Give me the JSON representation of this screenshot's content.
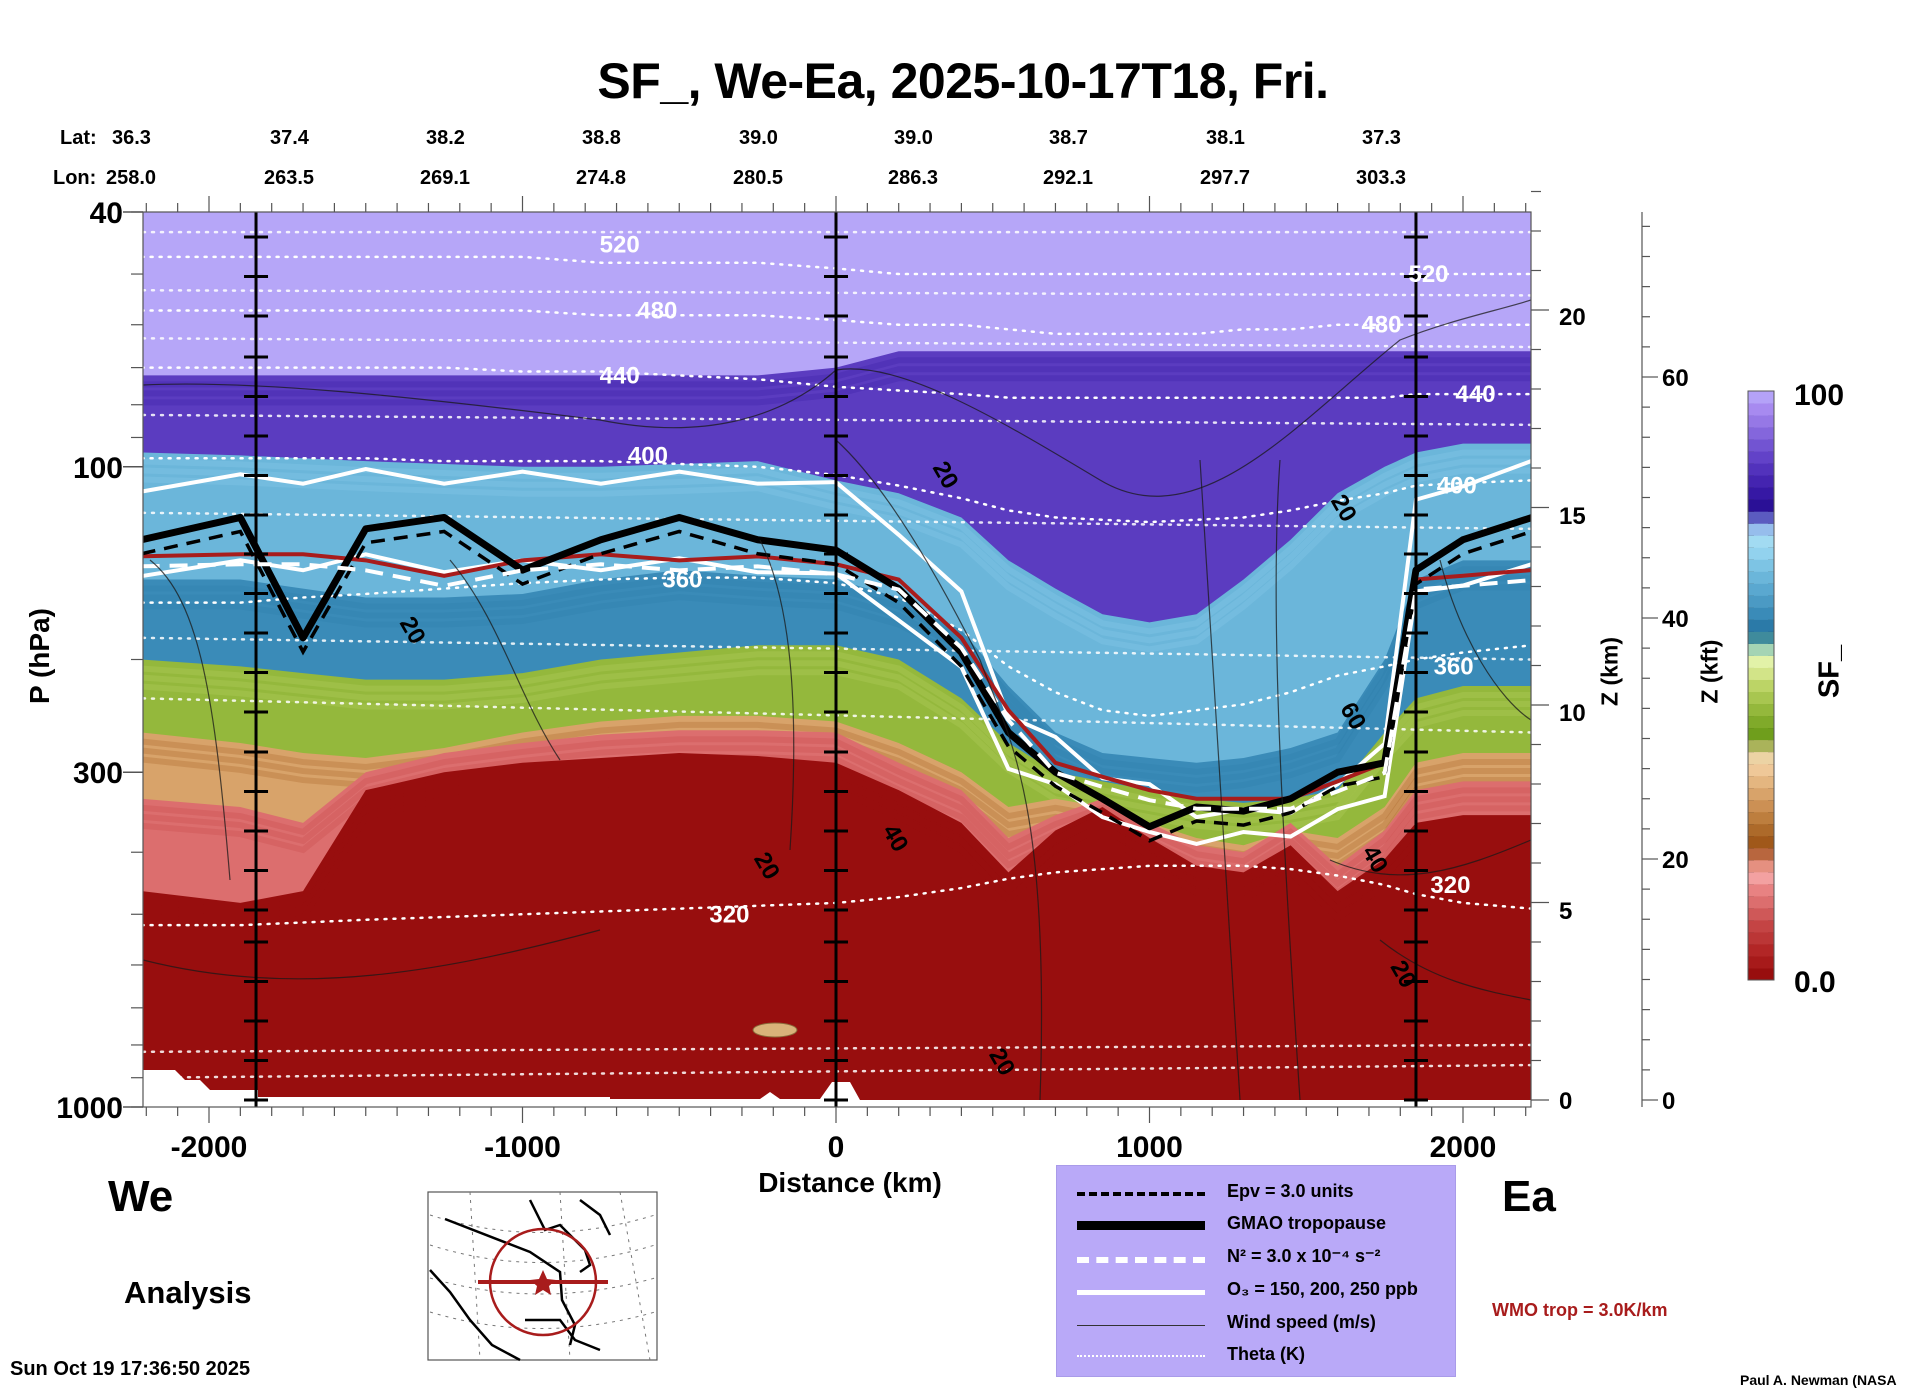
{
  "title": "SF_, We-Ea, 2025-10-17T18, Fri.",
  "header": {
    "lat_label": "Lat:",
    "lon_label": "Lon:",
    "lat": [
      "36.3",
      "37.4",
      "38.2",
      "38.8",
      "39.0",
      "39.0",
      "38.7",
      "38.1",
      "37.3"
    ],
    "lon": [
      "258.0",
      "263.5",
      "269.1",
      "274.8",
      "280.5",
      "286.3",
      "292.1",
      "297.7",
      "303.3"
    ]
  },
  "labels": {
    "west": "We",
    "east": "Ea",
    "analysis": "Analysis",
    "timestamp": "Sun Oct 19 17:36:50 2025",
    "credit": "Paul A. Newman (NASA",
    "wmo": "WMO trop = 3.0K/km"
  },
  "colors": {
    "wmo": "#a81c1c",
    "legend_bg": "#b9a9f8",
    "ground": "#980e0e"
  },
  "legend": [
    {
      "style": "black-dashed",
      "label": "Epv = 3.0 units"
    },
    {
      "style": "black-thick",
      "label": "GMAO tropopause"
    },
    {
      "style": "white-dashed",
      "label": "N² = 3.0 x 10⁻⁴ s⁻²"
    },
    {
      "style": "white-solid",
      "label": "O₃ = 150, 200, 250 ppb"
    },
    {
      "style": "thin-black",
      "label": "Wind speed (m/s)"
    },
    {
      "style": "white-dotted",
      "label": "Theta (K)"
    }
  ],
  "chart_data": {
    "type": "heatmap",
    "title": "SF_, We-Ea, 2025-10-17T18, Fri.",
    "xlabel": "Distance (km)",
    "ylabel": "P (hPa)",
    "y2label": "Z (km)",
    "y3label": "Z (kft)",
    "colorbar_label": "SF_",
    "xlim": [
      -2215,
      2220
    ],
    "ylim": [
      1000,
      40
    ],
    "yscale": "log",
    "xticks": [
      -2000,
      -1000,
      0,
      1000,
      2000
    ],
    "xticklabels": [
      "-2000",
      "-1000",
      "0",
      "1000",
      "2000"
    ],
    "yticks": [
      40,
      100,
      300,
      1000
    ],
    "yticklabels": [
      "40",
      "100",
      "300",
      "1000"
    ],
    "z_km_ticks": [
      0,
      5,
      10,
      15,
      20
    ],
    "z_kft_ticks": [
      0,
      20,
      40,
      60
    ],
    "vertical_markers_km": [
      -1850,
      0,
      1850
    ],
    "colorbar": {
      "min": 0.0,
      "max": 100,
      "min_label": "0.0",
      "max_label": "100",
      "colors": [
        "#980e0e",
        "#a71a1a",
        "#b22626",
        "#bb3636",
        "#c44444",
        "#cf5858",
        "#dc6e6e",
        "#e88282",
        "#f3a1a1",
        "#e59080",
        "#b8663e",
        "#a0581a",
        "#ad6a2a",
        "#bd7e3e",
        "#cc9054",
        "#d8a36a",
        "#e4b680",
        "#efc898",
        "#ecd3a4",
        "#aab35a",
        "#6f9e1c",
        "#80aa2a",
        "#94b83c",
        "#a8c650",
        "#bcd466",
        "#d2e488",
        "#e2f2a8",
        "#a4d4b4",
        "#3f8b9c",
        "#2b7aa8",
        "#3a8bb8",
        "#4b9ac4",
        "#5aa8d0",
        "#6bb6da",
        "#7dc4e4",
        "#92d2ee",
        "#a2dbf2",
        "#96bdec",
        "#5b5bc0",
        "#2a1096",
        "#3618a4",
        "#4424b0",
        "#5232bc",
        "#6242c8",
        "#7254d2",
        "#8466dc",
        "#9678e6",
        "#a78af0",
        "#b4a2f8"
      ]
    },
    "theta_isentropes_K": [
      320,
      360,
      400,
      440,
      480,
      520
    ],
    "theta_label_positions": [
      {
        "value": "520",
        "x_km": -690,
        "p_hPa": 45
      },
      {
        "value": "480",
        "x_km": -570,
        "p_hPa": 57
      },
      {
        "value": "440",
        "x_km": -690,
        "p_hPa": 72
      },
      {
        "value": "400",
        "x_km": -600,
        "p_hPa": 96
      },
      {
        "value": "360",
        "x_km": -490,
        "p_hPa": 150
      },
      {
        "value": "320",
        "x_km": -340,
        "p_hPa": 500
      },
      {
        "value": "520",
        "x_km": 1890,
        "p_hPa": 50
      },
      {
        "value": "480",
        "x_km": 1740,
        "p_hPa": 60
      },
      {
        "value": "440",
        "x_km": 2040,
        "p_hPa": 77
      },
      {
        "value": "400",
        "x_km": 1980,
        "p_hPa": 107
      },
      {
        "value": "360",
        "x_km": 1970,
        "p_hPa": 205
      },
      {
        "value": "320",
        "x_km": 1960,
        "p_hPa": 450
      }
    ],
    "wind_labels": [
      {
        "value": "20",
        "x_km": -1350,
        "p_hPa": 180
      },
      {
        "value": "20",
        "x_km": -220,
        "p_hPa": 420
      },
      {
        "value": "20",
        "x_km": 350,
        "p_hPa": 103
      },
      {
        "value": "40",
        "x_km": 190,
        "p_hPa": 380
      },
      {
        "value": "20",
        "x_km": 530,
        "p_hPa": 850
      },
      {
        "value": "20",
        "x_km": 1620,
        "p_hPa": 116
      },
      {
        "value": "60",
        "x_km": 1650,
        "p_hPa": 245
      },
      {
        "value": "40",
        "x_km": 1720,
        "p_hPa": 410
      },
      {
        "value": "20",
        "x_km": 1810,
        "p_hPa": 620
      }
    ],
    "boundary_x_km": [
      -2215,
      -1900,
      -1700,
      -1500,
      -1250,
      -1000,
      -750,
      -500,
      -250,
      0,
      200,
      400,
      550,
      700,
      850,
      1000,
      1150,
      1300,
      1450,
      1600,
      1750,
      1850,
      2000,
      2220
    ],
    "field_bands": [
      {
        "sf": 100,
        "p_bottom_hPa": [
          72,
          72,
          72,
          72,
          72,
          72,
          72,
          72,
          72,
          70,
          66,
          66,
          66,
          66,
          66,
          66,
          66,
          66,
          66,
          66,
          66,
          66,
          66,
          66
        ]
      },
      {
        "sf": 85,
        "p_bottom_hPa": [
          95,
          96,
          97,
          98,
          99,
          100,
          100,
          99,
          98,
          105,
          110,
          120,
          140,
          155,
          170,
          175,
          170,
          150,
          130,
          110,
          100,
          95,
          92,
          92
        ]
      },
      {
        "sf": 75,
        "p_bottom_hPa": [
          150,
          150,
          155,
          160,
          160,
          158,
          150,
          145,
          148,
          150,
          160,
          180,
          220,
          260,
          280,
          285,
          290,
          285,
          275,
          260,
          200,
          150,
          140,
          140
        ]
      },
      {
        "sf": 60,
        "p_bottom_hPa": [
          200,
          205,
          210,
          215,
          215,
          210,
          200,
          195,
          190,
          190,
          200,
          230,
          270,
          300,
          310,
          320,
          330,
          335,
          330,
          320,
          260,
          230,
          220,
          220
        ]
      },
      {
        "sf": 45,
        "p_bottom_hPa": [
          260,
          270,
          280,
          285,
          275,
          260,
          250,
          245,
          245,
          250,
          270,
          300,
          340,
          330,
          340,
          360,
          380,
          390,
          370,
          380,
          340,
          290,
          280,
          280
        ]
      },
      {
        "sf": 30,
        "p_bottom_hPa": [
          330,
          340,
          360,
          300,
          280,
          270,
          262,
          258,
          258,
          260,
          290,
          320,
          380,
          350,
          330,
          360,
          390,
          400,
          360,
          420,
          370,
          320,
          310,
          310
        ]
      },
      {
        "sf": 15,
        "p_bottom_hPa": [
          460,
          480,
          460,
          320,
          300,
          290,
          285,
          280,
          283,
          290,
          320,
          360,
          430,
          370,
          340,
          380,
          420,
          430,
          390,
          460,
          410,
          360,
          350,
          350
        ]
      },
      {
        "sf": 0,
        "p_bottom_hPa": [
          1000,
          1000,
          1000,
          1000,
          1000,
          1000,
          1000,
          1000,
          1000,
          1000,
          1000,
          1000,
          1000,
          1000,
          1000,
          1000,
          1000,
          1000,
          1000,
          1000,
          1000,
          1000,
          1000,
          1000
        ]
      }
    ],
    "tropopause_gmao_hPa": [
      130,
      120,
      185,
      125,
      120,
      145,
      130,
      120,
      130,
      135,
      155,
      195,
      260,
      300,
      330,
      365,
      340,
      345,
      330,
      300,
      290,
      145,
      130,
      120
    ],
    "tropopause_wmo_hPa": [
      138,
      137,
      137,
      140,
      148,
      140,
      137,
      140,
      138,
      142,
      150,
      185,
      240,
      290,
      305,
      320,
      330,
      330,
      330,
      310,
      290,
      150,
      148,
      145
    ],
    "o3_150ppb_hPa": [
      107,
      105,
      104,
      103,
      104,
      104,
      104,
      104,
      104,
      108,
      125,
      160,
      240,
      270,
      300,
      320,
      345,
      350,
      340,
      320,
      265,
      115,
      105,
      100
    ],
    "o3_250ppb_hPa": [
      145,
      143,
      142,
      140,
      143,
      143,
      142,
      142,
      143,
      150,
      170,
      210,
      290,
      320,
      345,
      380,
      380,
      380,
      370,
      350,
      320,
      160,
      150,
      145
    ]
  }
}
